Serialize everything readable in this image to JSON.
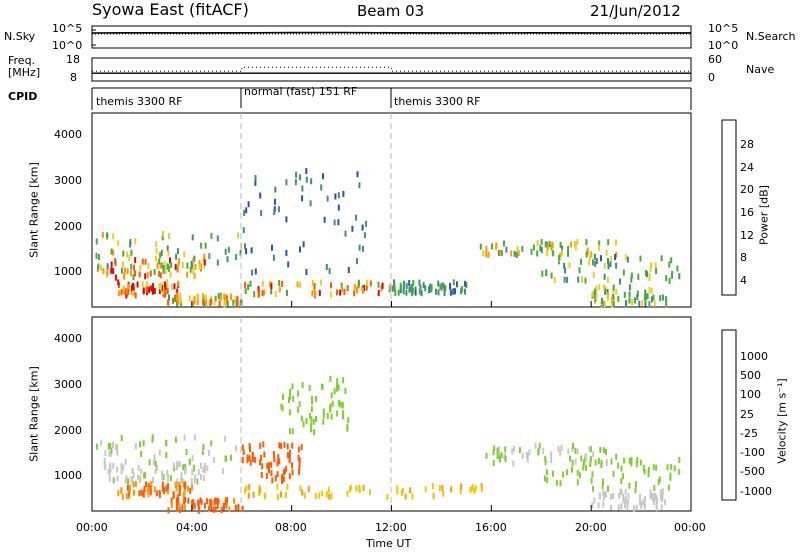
{
  "header": {
    "station": "Syowa East (fitACF)",
    "beam": "Beam 03",
    "date": "21/Jun/2012"
  },
  "noise_panel": {
    "left_label": "N.Sky",
    "left_ticks": [
      "10^5",
      "10^0"
    ],
    "right_label": "N.Search",
    "right_ticks": [
      "10^5",
      "10^0"
    ]
  },
  "freq_panel": {
    "left_label_line1": "Freq.",
    "left_label_line2": "[MHz]",
    "left_ticks": [
      "18",
      "8"
    ],
    "right_label": "Nave",
    "right_ticks": [
      "60",
      "0"
    ]
  },
  "cpid": {
    "label": "CPID",
    "segments": [
      {
        "label": "themis 3300 RF",
        "start_hour": 0,
        "end_hour": 6
      },
      {
        "label": "normal (fast) 151 RF",
        "start_hour": 6,
        "end_hour": 12
      },
      {
        "label": "themis 3300 RF",
        "start_hour": 12,
        "end_hour": 24
      }
    ]
  },
  "x_axis": {
    "label": "Time UT",
    "ticks": [
      "00:00",
      "04:00",
      "08:00",
      "12:00",
      "16:00",
      "20:00",
      "00:00"
    ]
  },
  "power_panel": {
    "ylabel": "Slant Range [km]",
    "yticks": [
      "4000",
      "3000",
      "2000",
      "1000"
    ],
    "colorbar_label": "Power [dB]",
    "colorbar_ticks": [
      "28",
      "24",
      "20",
      "16",
      "12",
      "8",
      "4"
    ]
  },
  "velocity_panel": {
    "ylabel": "Slant Range [km]",
    "yticks": [
      "4000",
      "3000",
      "2000",
      "1000"
    ],
    "colorbar_label": "Velocity [m s⁻¹]",
    "colorbar_ticks": [
      "1000",
      "500",
      "100",
      "25",
      "-25",
      "-100",
      "-500",
      "-1000"
    ]
  },
  "colors": {
    "power_scale": [
      "#1428ff",
      "#2a52b0",
      "#3f8f7a",
      "#4aaa3a",
      "#e8d020",
      "#ff9a00",
      "#ff5a00",
      "#e80000"
    ],
    "velocity_scale": [
      "#e80000",
      "#ff5a00",
      "#ff9a00",
      "#f2c800",
      "#c8c8c8",
      "#7ed02e",
      "#3f8f7a",
      "#2a52b0"
    ]
  },
  "chart_data": [
    {
      "type": "line",
      "panel": "noise",
      "series": [
        {
          "name": "N.Sky",
          "x": [
            0,
            2,
            4,
            6,
            8,
            10,
            12,
            14,
            16,
            18,
            20,
            22,
            24
          ],
          "y": [
            10000,
            12000,
            11000,
            12000,
            14000,
            15000,
            12000,
            11000,
            11000,
            12000,
            11000,
            10000,
            11000
          ]
        }
      ],
      "ylim": [
        1,
        100000
      ],
      "yscale": "log"
    },
    {
      "type": "scatter",
      "panel": "frequency",
      "series": [
        {
          "name": "Freq.",
          "x": [
            0,
            6,
            6,
            12,
            12,
            24
          ],
          "y": [
            11,
            11,
            11,
            11,
            11,
            11
          ]
        },
        {
          "name": "Nave",
          "x": [
            0,
            6,
            6,
            12,
            12,
            24
          ],
          "y": [
            25,
            25,
            40,
            40,
            25,
            25
          ]
        }
      ],
      "ylim": [
        8,
        18
      ]
    },
    {
      "type": "heatmap",
      "panel": "power",
      "xlabel": "Time UT",
      "ylabel": "Slant Range [km]",
      "xlim": [
        0,
        24
      ],
      "ylim": [
        180,
        4500
      ],
      "zlabel": "Power [dB]",
      "zlim": [
        0,
        30
      ],
      "regions": [
        {
          "t": [
            0.1,
            6.0
          ],
          "r": [
            1100,
            1900
          ],
          "z": 14
        },
        {
          "t": [
            0.2,
            4.5
          ],
          "r": [
            900,
            1300
          ],
          "z": 22
        },
        {
          "t": [
            1.0,
            3.5
          ],
          "r": [
            500,
            800
          ],
          "z": 26
        },
        {
          "t": [
            3.0,
            6.0
          ],
          "r": [
            300,
            500
          ],
          "z": 18
        },
        {
          "t": [
            6.0,
            11.0
          ],
          "r": [
            1000,
            3300
          ],
          "z": 8
        },
        {
          "t": [
            6.0,
            12.0
          ],
          "r": [
            500,
            800
          ],
          "z": 20
        },
        {
          "t": [
            12.0,
            15.0
          ],
          "r": [
            550,
            800
          ],
          "z": 10
        },
        {
          "t": [
            15.5,
            21.0
          ],
          "r": [
            1400,
            1700
          ],
          "z": 16
        },
        {
          "t": [
            18.0,
            23.5
          ],
          "r": [
            800,
            1400
          ],
          "z": 12
        },
        {
          "t": [
            20.0,
            23.0
          ],
          "r": [
            300,
            700
          ],
          "z": 14
        }
      ]
    },
    {
      "type": "heatmap",
      "panel": "velocity",
      "xlabel": "Time UT",
      "ylabel": "Slant Range [km]",
      "xlim": [
        0,
        24
      ],
      "ylim": [
        180,
        4500
      ],
      "zlabel": "Velocity [m s⁻¹]",
      "zlim": [
        -1000,
        1000
      ],
      "regions": [
        {
          "t": [
            0.1,
            6.0
          ],
          "r": [
            1100,
            1900
          ],
          "z": 100
        },
        {
          "t": [
            0.2,
            4.5
          ],
          "r": [
            900,
            1300
          ],
          "z": 80
        },
        {
          "t": [
            1.0,
            4.0
          ],
          "r": [
            550,
            850
          ],
          "z": -100
        },
        {
          "t": [
            3.0,
            6.0
          ],
          "r": [
            250,
            500
          ],
          "z": -150
        },
        {
          "t": [
            6.0,
            8.5
          ],
          "r": [
            900,
            1800
          ],
          "z": -300
        },
        {
          "t": [
            7.5,
            10.5
          ],
          "r": [
            2000,
            3200
          ],
          "z": 300
        },
        {
          "t": [
            6.0,
            16.0
          ],
          "r": [
            550,
            800
          ],
          "z": -20
        },
        {
          "t": [
            15.5,
            21.0
          ],
          "r": [
            1300,
            1700
          ],
          "z": 100
        },
        {
          "t": [
            18.0,
            23.5
          ],
          "r": [
            700,
            1400
          ],
          "z": 200
        },
        {
          "t": [
            20.0,
            23.0
          ],
          "r": [
            300,
            700
          ],
          "z": 60
        }
      ]
    }
  ]
}
